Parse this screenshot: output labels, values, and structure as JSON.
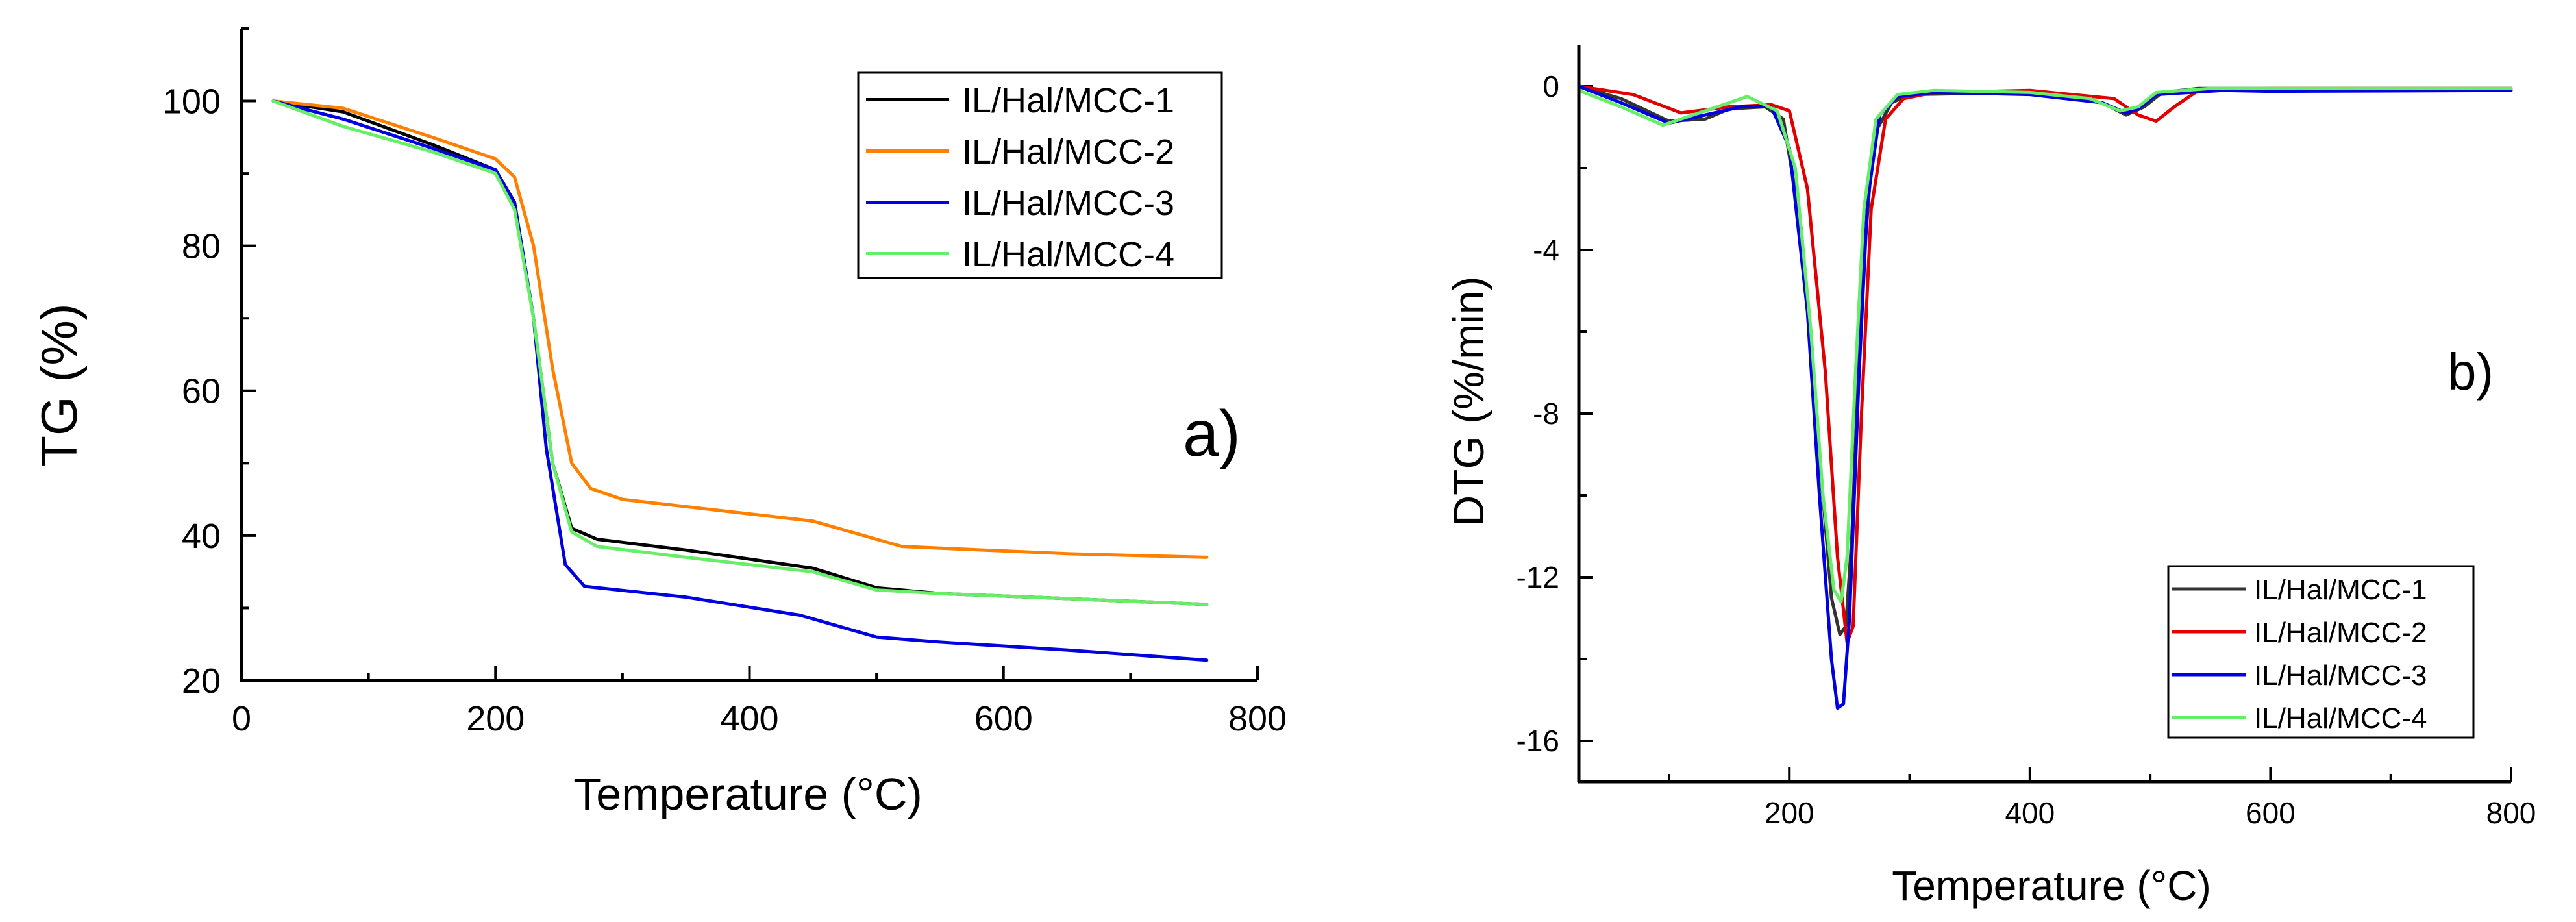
{
  "chart_data": [
    {
      "type": "line",
      "title": "",
      "panel_label": "a)",
      "xlabel": "Temperature (°C)",
      "ylabel": "TG (%)",
      "xlim": [
        0,
        800
      ],
      "ylim": [
        20,
        110
      ],
      "xticks": [
        0,
        200,
        400,
        600,
        800
      ],
      "yticks": [
        20,
        40,
        60,
        80,
        100
      ],
      "xtick_labels": [
        "0",
        "200",
        "400",
        "600",
        "800"
      ],
      "ytick_labels": [
        "20",
        "40",
        "60",
        "80",
        "100"
      ],
      "grid": false,
      "legend_position": "top-right",
      "series": [
        {
          "name": "IL/Hal/MCC-1",
          "color": "#000000",
          "x": [
            25,
            80,
            150,
            200,
            215,
            230,
            245,
            260,
            280,
            350,
            450,
            500,
            550,
            650,
            760
          ],
          "y": [
            100,
            98.5,
            94,
            90.5,
            86,
            70,
            50,
            41,
            39.5,
            38,
            35.5,
            32.8,
            32,
            31.3,
            30.5
          ]
        },
        {
          "name": "IL/Hal/MCC-2",
          "color": "#ff8000",
          "x": [
            25,
            80,
            150,
            200,
            215,
            230,
            245,
            260,
            275,
            300,
            350,
            450,
            500,
            520,
            650,
            760
          ],
          "y": [
            100,
            99,
            95,
            92,
            89.5,
            80,
            63,
            50,
            46.5,
            45,
            44,
            42,
            39.5,
            38.5,
            37.5,
            37
          ]
        },
        {
          "name": "IL/Hal/MCC-3",
          "color": "#0000e0",
          "x": [
            25,
            80,
            150,
            200,
            215,
            230,
            240,
            255,
            270,
            350,
            440,
            500,
            550,
            650,
            760
          ],
          "y": [
            100,
            97.5,
            93.5,
            90.5,
            86,
            70,
            52,
            36,
            33,
            31.5,
            29,
            26,
            25.3,
            24.2,
            22.8
          ]
        },
        {
          "name": "IL/Hal/MCC-4",
          "color": "#66ee66",
          "x": [
            25,
            80,
            150,
            200,
            215,
            230,
            245,
            260,
            280,
            350,
            450,
            500,
            550,
            650,
            760
          ],
          "y": [
            100,
            96.5,
            93,
            90,
            85,
            70,
            50,
            40.5,
            38.5,
            37,
            35,
            32.5,
            32,
            31.3,
            30.5
          ]
        }
      ]
    },
    {
      "type": "line",
      "title": "",
      "panel_label": "b)",
      "xlabel": "Temperature (°C)",
      "ylabel": "DTG (%/min)",
      "xlim": [
        25,
        800
      ],
      "ylim": [
        -17,
        1
      ],
      "xticks": [
        200,
        400,
        600,
        800
      ],
      "yticks": [
        0,
        -4,
        -8,
        -12,
        -16
      ],
      "xtick_labels": [
        "200",
        "400",
        "600",
        "800"
      ],
      "ytick_labels": [
        "0",
        "-4",
        "-8",
        "-12",
        "-16"
      ],
      "grid": false,
      "legend_position": "bottom-right",
      "series": [
        {
          "name": "IL/Hal/MCC-1",
          "color": "#333333",
          "x": [
            25,
            60,
            100,
            130,
            150,
            180,
            195,
            210,
            225,
            235,
            242,
            247,
            252,
            260,
            270,
            285,
            300,
            400,
            460,
            480,
            495,
            510,
            540,
            600,
            800
          ],
          "y": [
            0,
            -0.3,
            -0.85,
            -0.8,
            -0.55,
            -0.5,
            -0.8,
            -3.5,
            -9,
            -12.5,
            -13.4,
            -13.2,
            -11,
            -5,
            -1.2,
            -0.4,
            -0.2,
            -0.15,
            -0.4,
            -0.7,
            -0.5,
            -0.15,
            -0.05,
            -0.05,
            -0.05
          ]
        },
        {
          "name": "IL/Hal/MCC-2",
          "color": "#e00000",
          "x": [
            25,
            70,
            110,
            150,
            185,
            200,
            215,
            230,
            240,
            248,
            253,
            260,
            268,
            280,
            295,
            320,
            400,
            470,
            490,
            505,
            520,
            540,
            600,
            800
          ],
          "y": [
            0,
            -0.2,
            -0.65,
            -0.5,
            -0.45,
            -0.6,
            -2.5,
            -7,
            -11.5,
            -13.6,
            -13.2,
            -8,
            -3,
            -0.8,
            -0.3,
            -0.15,
            -0.1,
            -0.3,
            -0.7,
            -0.85,
            -0.5,
            -0.1,
            -0.05,
            -0.05
          ]
        },
        {
          "name": "IL/Hal/MCC-3",
          "color": "#0000e0",
          "x": [
            25,
            60,
            100,
            130,
            160,
            185,
            200,
            215,
            225,
            235,
            240,
            245,
            250,
            258,
            265,
            275,
            290,
            320,
            400,
            460,
            480,
            490,
            505,
            560,
            600,
            800
          ],
          "y": [
            0,
            -0.4,
            -0.9,
            -0.7,
            -0.5,
            -0.5,
            -1.5,
            -5.5,
            -10,
            -14,
            -15.2,
            -15.1,
            -13,
            -7,
            -2.8,
            -0.7,
            -0.25,
            -0.15,
            -0.2,
            -0.4,
            -0.65,
            -0.55,
            -0.2,
            -0.1,
            -0.12,
            -0.1
          ]
        },
        {
          "name": "IL/Hal/MCC-4",
          "color": "#66ee66",
          "x": [
            25,
            60,
            95,
            130,
            165,
            190,
            205,
            218,
            228,
            237,
            243,
            248,
            255,
            262,
            272,
            290,
            320,
            400,
            450,
            475,
            490,
            505,
            550,
            800
          ],
          "y": [
            -0.1,
            -0.5,
            -0.95,
            -0.6,
            -0.25,
            -0.6,
            -2,
            -6,
            -10,
            -12.3,
            -12.6,
            -11.5,
            -7,
            -3,
            -0.8,
            -0.2,
            -0.1,
            -0.15,
            -0.3,
            -0.6,
            -0.5,
            -0.15,
            -0.05,
            -0.05
          ]
        }
      ]
    }
  ]
}
